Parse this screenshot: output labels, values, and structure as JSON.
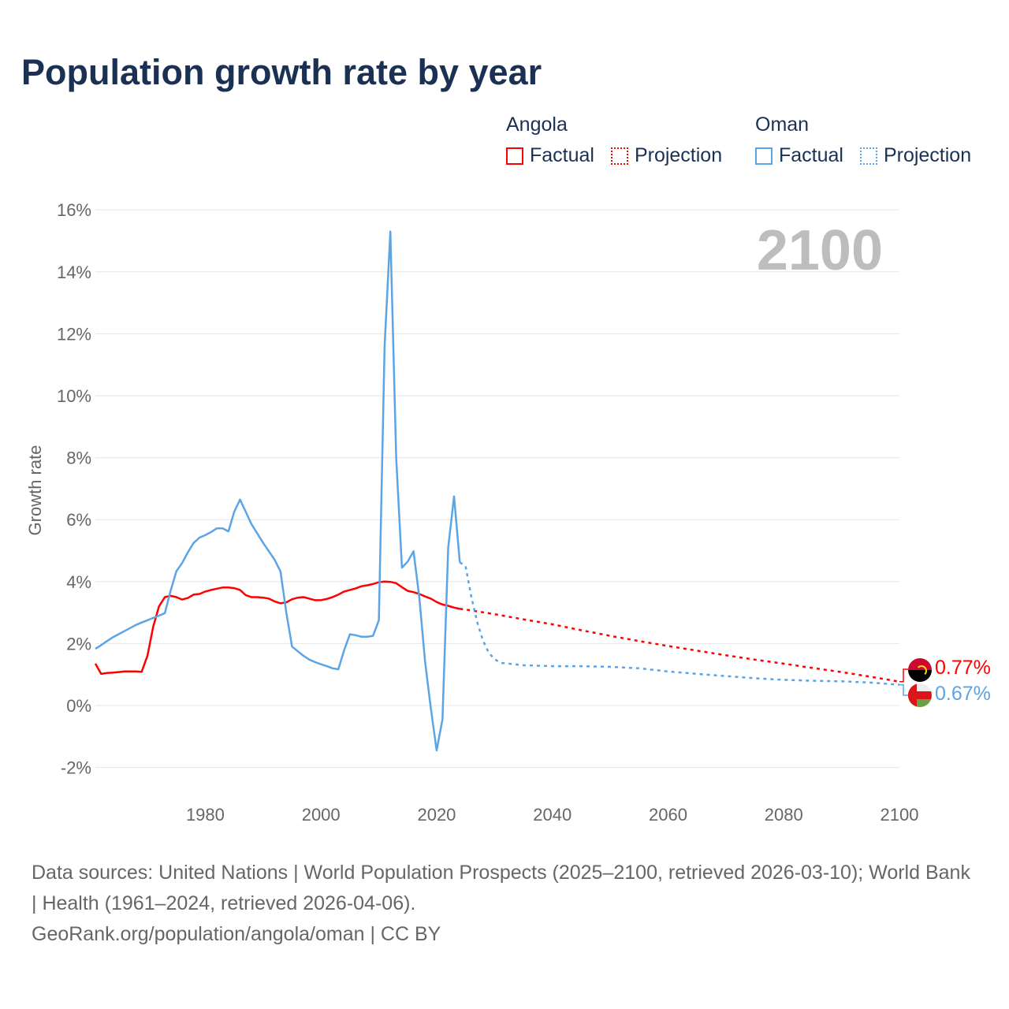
{
  "title": "Population growth rate by year",
  "legend": {
    "groups": [
      {
        "name": "Angola",
        "factual": "Factual",
        "projection": "Projection",
        "color": "#ff0000"
      },
      {
        "name": "Oman",
        "factual": "Factual",
        "projection": "Projection",
        "color": "#5ba4e6"
      }
    ]
  },
  "footer": {
    "sources": "Data sources: United Nations | World Population Prospects (2025–2100, retrieved 2026-03-10); World Bank | Health (1961–2024, retrieved 2026-04-06).",
    "credit": "GeoRank.org/population/angola/oman | CC BY"
  },
  "chart_data": {
    "type": "line",
    "title": "Population growth rate by year",
    "xlabel": "",
    "ylabel": "Growth rate",
    "xlim": [
      1961,
      2100
    ],
    "ylim": [
      -2,
      16
    ],
    "xticks": [
      1980,
      2000,
      2020,
      2040,
      2060,
      2080,
      2100
    ],
    "yticks": [
      -2,
      0,
      2,
      4,
      6,
      8,
      10,
      12,
      14,
      16
    ],
    "ytick_labels": [
      "-2%",
      "0%",
      "2%",
      "4%",
      "6%",
      "8%",
      "10%",
      "12%",
      "14%",
      "16%"
    ],
    "grid": true,
    "legend_position": "top-right",
    "year_watermark": "2100",
    "series": [
      {
        "name": "Angola Factual",
        "country": "Angola",
        "kind": "factual",
        "color": "#ff0000",
        "x": [
          1961,
          1962,
          1963,
          1964,
          1965,
          1966,
          1967,
          1968,
          1969,
          1970,
          1971,
          1972,
          1973,
          1974,
          1975,
          1976,
          1977,
          1978,
          1979,
          1980,
          1981,
          1982,
          1983,
          1984,
          1985,
          1986,
          1987,
          1988,
          1989,
          1990,
          1991,
          1992,
          1993,
          1994,
          1995,
          1996,
          1997,
          1998,
          1999,
          2000,
          2001,
          2002,
          2003,
          2004,
          2005,
          2006,
          2007,
          2008,
          2009,
          2010,
          2011,
          2012,
          2013,
          2014,
          2015,
          2016,
          2017,
          2018,
          2019,
          2020,
          2021,
          2022,
          2023,
          2024
        ],
        "y": [
          1.35,
          1.02,
          1.05,
          1.06,
          1.08,
          1.1,
          1.1,
          1.1,
          1.09,
          1.6,
          2.55,
          3.2,
          3.5,
          3.54,
          3.5,
          3.42,
          3.47,
          3.58,
          3.6,
          3.68,
          3.73,
          3.77,
          3.81,
          3.81,
          3.79,
          3.73,
          3.56,
          3.5,
          3.5,
          3.48,
          3.45,
          3.36,
          3.3,
          3.33,
          3.43,
          3.48,
          3.5,
          3.45,
          3.4,
          3.4,
          3.44,
          3.5,
          3.58,
          3.68,
          3.73,
          3.78,
          3.85,
          3.88,
          3.92,
          3.98,
          4.0,
          3.99,
          3.95,
          3.82,
          3.7,
          3.66,
          3.6,
          3.52,
          3.45,
          3.34,
          3.26,
          3.22,
          3.16,
          3.12
        ]
      },
      {
        "name": "Angola Projection",
        "country": "Angola",
        "kind": "projection",
        "color": "#ff0000",
        "x": [
          2024,
          2025,
          2030,
          2035,
          2040,
          2045,
          2050,
          2055,
          2060,
          2065,
          2070,
          2075,
          2080,
          2085,
          2090,
          2095,
          2100
        ],
        "y": [
          3.12,
          3.1,
          2.95,
          2.78,
          2.62,
          2.43,
          2.25,
          2.08,
          1.92,
          1.77,
          1.62,
          1.48,
          1.35,
          1.21,
          1.08,
          0.93,
          0.77
        ]
      },
      {
        "name": "Oman Factual",
        "country": "Oman",
        "kind": "factual",
        "color": "#5ba4e6",
        "x": [
          1961,
          1962,
          1963,
          1964,
          1965,
          1966,
          1967,
          1968,
          1969,
          1970,
          1971,
          1972,
          1973,
          1974,
          1975,
          1976,
          1977,
          1978,
          1979,
          1980,
          1981,
          1982,
          1983,
          1984,
          1985,
          1986,
          1987,
          1988,
          1989,
          1990,
          1991,
          1992,
          1993,
          1994,
          1995,
          1996,
          1997,
          1998,
          1999,
          2000,
          2001,
          2002,
          2003,
          2004,
          2005,
          2006,
          2007,
          2008,
          2009,
          2010,
          2011,
          2012,
          2013,
          2014,
          2015,
          2016,
          2017,
          2018,
          2019,
          2020,
          2021,
          2022,
          2023,
          2024
        ],
        "y": [
          1.83,
          1.95,
          2.08,
          2.2,
          2.3,
          2.4,
          2.5,
          2.6,
          2.68,
          2.75,
          2.83,
          2.9,
          2.98,
          3.7,
          4.33,
          4.6,
          4.95,
          5.25,
          5.42,
          5.5,
          5.6,
          5.72,
          5.72,
          5.62,
          6.25,
          6.65,
          6.25,
          5.85,
          5.55,
          5.25,
          4.98,
          4.7,
          4.33,
          3.0,
          1.9,
          1.75,
          1.6,
          1.48,
          1.4,
          1.33,
          1.27,
          1.2,
          1.17,
          1.78,
          2.3,
          2.27,
          2.22,
          2.22,
          2.25,
          2.75,
          11.6,
          15.3,
          8.0,
          4.45,
          4.65,
          4.98,
          3.5,
          1.4,
          -0.1,
          -1.45,
          -0.45,
          5.1,
          6.75,
          4.62
        ]
      },
      {
        "name": "Oman Projection",
        "country": "Oman",
        "kind": "projection",
        "color": "#5ba4e6",
        "x": [
          2024,
          2025,
          2026,
          2027,
          2028,
          2029,
          2030,
          2031,
          2035,
          2040,
          2045,
          2050,
          2055,
          2060,
          2065,
          2070,
          2075,
          2080,
          2085,
          2090,
          2095,
          2100
        ],
        "y": [
          4.62,
          4.5,
          3.5,
          2.7,
          2.1,
          1.7,
          1.5,
          1.38,
          1.3,
          1.27,
          1.27,
          1.25,
          1.2,
          1.1,
          1.02,
          0.95,
          0.88,
          0.83,
          0.8,
          0.78,
          0.74,
          0.67
        ]
      }
    ],
    "end_labels": [
      {
        "country": "Angola",
        "value": "0.77%",
        "color": "#ff0000"
      },
      {
        "country": "Oman",
        "value": "0.67%",
        "color": "#5ba4e6"
      }
    ]
  }
}
